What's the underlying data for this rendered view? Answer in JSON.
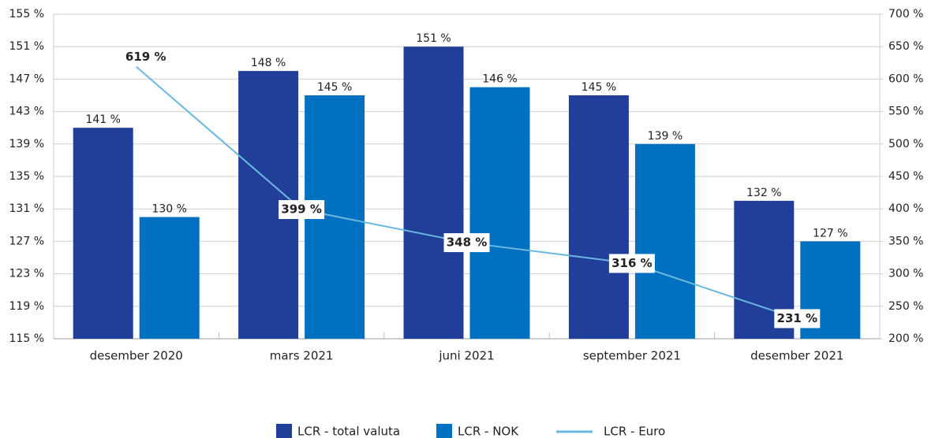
{
  "chart_data": {
    "type": "bar",
    "categories": [
      "desember 2020",
      "mars 2021",
      "juni 2021",
      "september 2021",
      "desember 2021"
    ],
    "series": [
      {
        "name": "LCR - total valuta",
        "color": "#213f99",
        "type": "bar",
        "values": [
          141,
          148,
          151,
          145,
          132
        ],
        "value_labels": [
          "141 %",
          "148 %",
          "151 %",
          "145 %",
          "132 %"
        ]
      },
      {
        "name": "LCR - NOK",
        "color": "#0070c0",
        "type": "bar",
        "values": [
          130,
          145,
          146,
          139,
          127
        ],
        "value_labels": [
          "130 %",
          "145 %",
          "146 %",
          "139 %",
          "127 %"
        ]
      },
      {
        "name": "LCR - Euro",
        "color": "#6ab7e0",
        "type": "line",
        "axis": "y2",
        "values": [
          619,
          399,
          348,
          316,
          231
        ],
        "value_labels": [
          "619 %",
          "399 %",
          "348 %",
          "316 %",
          "231 %"
        ]
      }
    ],
    "ylim": [
      115,
      155
    ],
    "yticks": [
      {
        "value": 115,
        "label": "115 %"
      },
      {
        "value": 119,
        "label": "119 %"
      },
      {
        "value": 123,
        "label": "123 %"
      },
      {
        "value": 127,
        "label": "127 %"
      },
      {
        "value": 131,
        "label": "131 %"
      },
      {
        "value": 135,
        "label": "135 %"
      },
      {
        "value": 139,
        "label": "139 %"
      },
      {
        "value": 143,
        "label": "143 %"
      },
      {
        "value": 147,
        "label": "147 %"
      },
      {
        "value": 151,
        "label": "151 %"
      },
      {
        "value": 155,
        "label": "155 %"
      }
    ],
    "y2lim": [
      200,
      700
    ],
    "y2ticks": [
      {
        "value": 200,
        "label": "200 %"
      },
      {
        "value": 250,
        "label": "250 %"
      },
      {
        "value": 300,
        "label": "300 %"
      },
      {
        "value": 350,
        "label": "350 %"
      },
      {
        "value": 400,
        "label": "400 %"
      },
      {
        "value": 450,
        "label": "450 %"
      },
      {
        "value": 500,
        "label": "500 %"
      },
      {
        "value": 550,
        "label": "550 %"
      },
      {
        "value": 600,
        "label": "600 %"
      },
      {
        "value": 650,
        "label": "650 %"
      },
      {
        "value": 700,
        "label": "700 %"
      }
    ],
    "grid": true,
    "legend": "bottom"
  }
}
